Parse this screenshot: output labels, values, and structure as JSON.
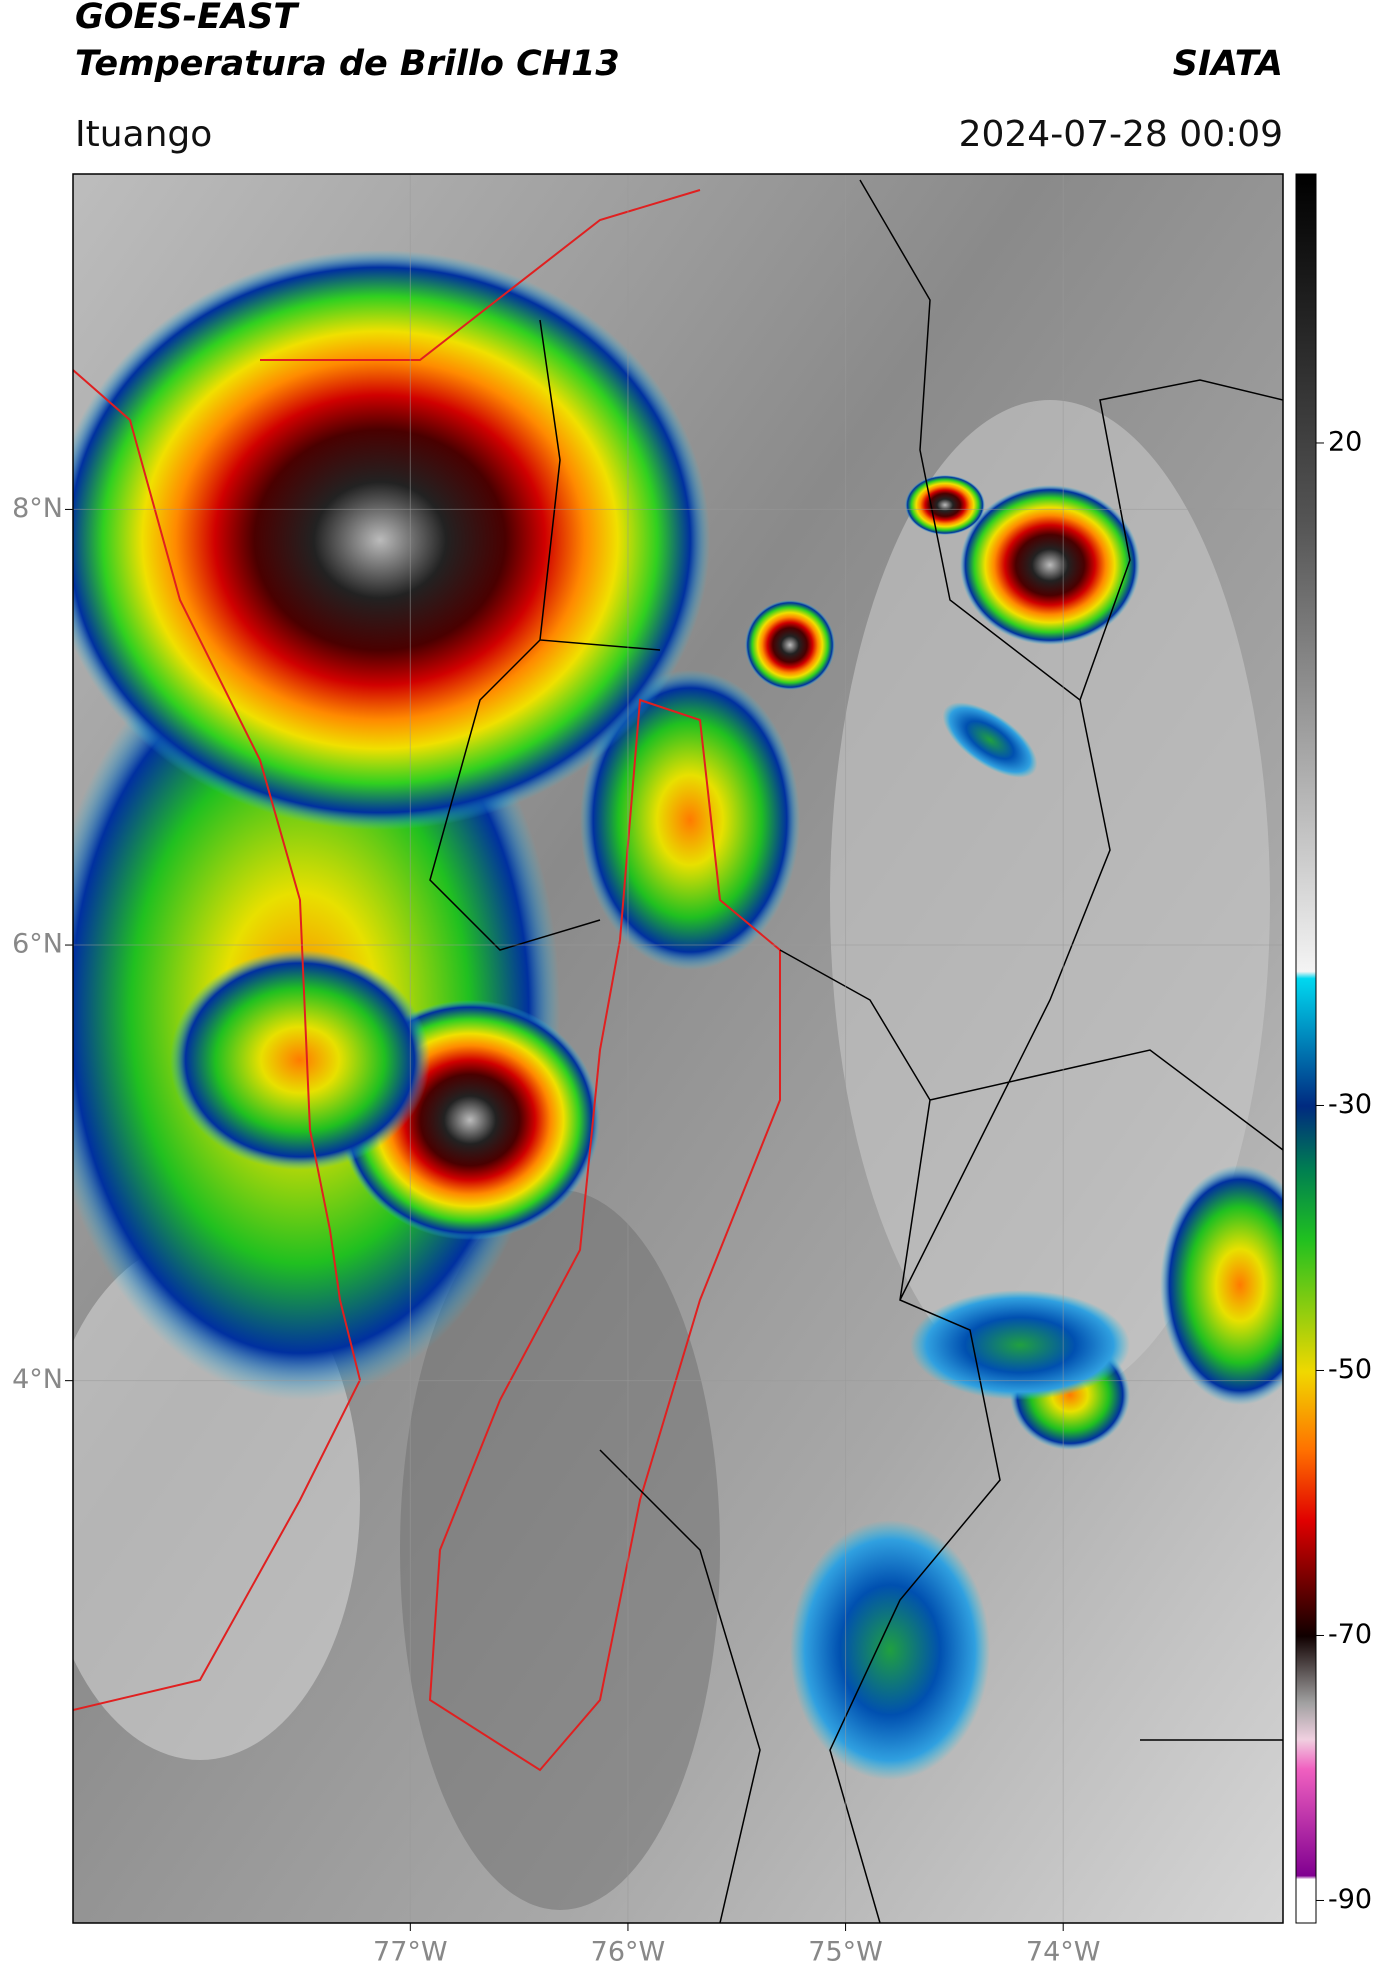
{
  "header": {
    "title": "GOES-EAST",
    "subtitle": "Temperatura de Brillo CH13",
    "source": "SIATA",
    "location": "Ituango",
    "datetime": "2024-07-28 00:09"
  },
  "map": {
    "xlim": [
      -78.55,
      -72.99
    ],
    "ylim": [
      1.51,
      9.54
    ],
    "xticks": [
      {
        "value": -77,
        "label": "77°W"
      },
      {
        "value": -76,
        "label": "76°W"
      },
      {
        "value": -75,
        "label": "75°W"
      },
      {
        "value": -74,
        "label": "74°W"
      }
    ],
    "yticks": [
      {
        "value": 4,
        "label": "4°N"
      },
      {
        "value": 6,
        "label": "6°N"
      },
      {
        "value": 8,
        "label": "8°N"
      }
    ],
    "grid": true
  },
  "colorbar": {
    "lim": [
      -91.7,
      40.3
    ],
    "ticks": [
      -90,
      -70,
      -50,
      -30,
      20
    ]
  }
}
